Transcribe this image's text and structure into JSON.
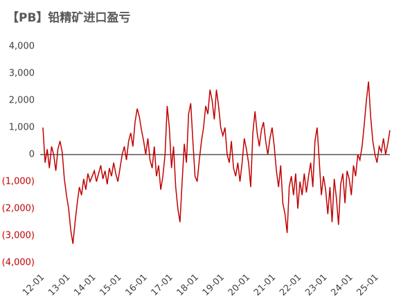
{
  "chart_data": {
    "type": "line",
    "title": "【PB】铅精矿进口盈亏",
    "x": [
      "12-01",
      "12-02",
      "12-03",
      "12-04",
      "12-05",
      "12-06",
      "12-07",
      "12-08",
      "12-09",
      "12-10",
      "12-11",
      "12-12",
      "13-01",
      "13-02",
      "13-03",
      "13-04",
      "13-05",
      "13-06",
      "13-07",
      "13-08",
      "13-09",
      "13-10",
      "13-11",
      "13-12",
      "14-01",
      "14-02",
      "14-03",
      "14-04",
      "14-05",
      "14-06",
      "14-07",
      "14-08",
      "14-09",
      "14-10",
      "14-11",
      "14-12",
      "15-01",
      "15-02",
      "15-03",
      "15-04",
      "15-05",
      "15-06",
      "15-07",
      "15-08",
      "15-09",
      "15-10",
      "15-11",
      "15-12",
      "16-01",
      "16-02",
      "16-03",
      "16-04",
      "16-05",
      "16-06",
      "16-07",
      "16-08",
      "16-09",
      "16-10",
      "16-11",
      "16-12",
      "17-01",
      "17-02",
      "17-03",
      "17-04",
      "17-05",
      "17-06",
      "17-07",
      "17-08",
      "17-09",
      "17-10",
      "17-11",
      "17-12",
      "18-01",
      "18-02",
      "18-03",
      "18-04",
      "18-05",
      "18-06",
      "18-07",
      "18-08",
      "18-09",
      "18-10",
      "18-11",
      "18-12",
      "19-01",
      "19-02",
      "19-03",
      "19-04",
      "19-05",
      "19-06",
      "19-07",
      "19-08",
      "19-09",
      "19-10",
      "19-11",
      "19-12",
      "20-01",
      "20-02",
      "20-03",
      "20-04",
      "20-05",
      "20-06",
      "20-07",
      "20-08",
      "20-09",
      "20-10",
      "20-11",
      "20-12",
      "21-01",
      "21-02",
      "21-03",
      "21-04",
      "21-05",
      "21-06",
      "21-07",
      "21-08",
      "21-09",
      "21-10",
      "21-11",
      "21-12",
      "22-01",
      "22-02",
      "22-03",
      "22-04",
      "22-05",
      "22-06",
      "22-07",
      "22-08",
      "22-09",
      "22-10",
      "22-11",
      "22-12",
      "23-01",
      "23-02",
      "23-03",
      "23-04",
      "23-05",
      "23-06",
      "23-07",
      "23-08",
      "23-09",
      "23-10",
      "23-11",
      "23-12",
      "24-01",
      "24-02",
      "24-03",
      "24-04",
      "24-05",
      "24-06",
      "24-07",
      "24-08",
      "24-09",
      "24-10",
      "24-11",
      "24-12",
      "25-01",
      "25-02",
      "25-03",
      "25-04",
      "25-05",
      "25-06",
      "25-07"
    ],
    "series": [
      {
        "color": "#c00000",
        "values": [
          1000,
          -300,
          200,
          -500,
          300,
          0,
          -600,
          200,
          500,
          100,
          -900,
          -1500,
          -2000,
          -2800,
          -3300,
          -2500,
          -1800,
          -1200,
          -1500,
          -900,
          -1300,
          -700,
          -1000,
          -800,
          -600,
          -1000,
          -700,
          -400,
          -900,
          -600,
          -1100,
          -500,
          -800,
          -300,
          -700,
          -1000,
          -500,
          0,
          300,
          -200,
          500,
          800,
          300,
          1200,
          1700,
          1400,
          900,
          500,
          0,
          600,
          -200,
          -500,
          300,
          -800,
          -400,
          -1300,
          -800,
          0,
          1800,
          1000,
          -500,
          300,
          -1200,
          -2000,
          -2500,
          -1000,
          400,
          -300,
          1500,
          1900,
          500,
          -800,
          -1000,
          -200,
          500,
          1000,
          1800,
          1500,
          2400,
          2000,
          1300,
          2400,
          1800,
          1000,
          700,
          1000,
          0,
          -300,
          500,
          -500,
          -800,
          -300,
          -1000,
          -300,
          600,
          200,
          -300,
          -1200,
          800,
          1600,
          800,
          300,
          900,
          1200,
          500,
          0,
          600,
          1000,
          300,
          -600,
          -1200,
          -400,
          -1800,
          -2200,
          -2900,
          -1200,
          -800,
          -1500,
          -700,
          -2000,
          -1000,
          -1500,
          -700,
          -1400,
          -800,
          -300,
          -1200,
          500,
          1000,
          -200,
          -1500,
          -800,
          -1300,
          -2200,
          -1200,
          -2500,
          -900,
          -1600,
          -2600,
          -1100,
          -700,
          -1800,
          -600,
          -900,
          -1500,
          -400,
          -800,
          0,
          -200,
          300,
          1100,
          2000,
          2700,
          1400,
          500,
          0,
          -300,
          300,
          100,
          600,
          0,
          400,
          900
        ]
      }
    ],
    "xticks": [
      "12-01",
      "13-01",
      "14-01",
      "15-01",
      "16-01",
      "17-01",
      "18-01",
      "19-01",
      "20-01",
      "21-01",
      "22-01",
      "23-01",
      "24-01",
      "25-01"
    ],
    "ylim": [
      -4000,
      4000
    ],
    "yticks": [
      {
        "value": -4000,
        "label": "(4,000)"
      },
      {
        "value": -3000,
        "label": "(3,000)"
      },
      {
        "value": -2000,
        "label": "(2,000)"
      },
      {
        "value": -1000,
        "label": "(1,000)"
      },
      0,
      {
        "value": 1000,
        "label": "1,000"
      },
      {
        "value": 2000,
        "label": "2,000"
      },
      {
        "value": 3000,
        "label": "3,000"
      },
      {
        "value": 4000,
        "label": "4,000"
      }
    ],
    "negative_tick_color": "#c00000",
    "zero_line": true
  }
}
